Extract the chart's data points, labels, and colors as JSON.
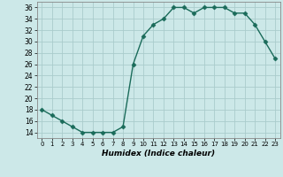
{
  "x": [
    0,
    1,
    2,
    3,
    4,
    5,
    6,
    7,
    8,
    9,
    10,
    11,
    12,
    13,
    14,
    15,
    16,
    17,
    18,
    19,
    20,
    21,
    22,
    23
  ],
  "y": [
    18,
    17,
    16,
    15,
    14,
    14,
    14,
    14,
    15,
    26,
    31,
    33,
    34,
    36,
    36,
    35,
    36,
    36,
    36,
    35,
    35,
    33,
    30,
    27
  ],
  "line_color": "#1a6b5a",
  "marker_color": "#1a6b5a",
  "bg_color": "#cce8e8",
  "grid_color": "#aacccc",
  "xlabel": "Humidex (Indice chaleur)",
  "xlim": [
    -0.5,
    23.5
  ],
  "ylim": [
    13,
    37
  ],
  "yticks": [
    14,
    16,
    18,
    20,
    22,
    24,
    26,
    28,
    30,
    32,
    34,
    36
  ],
  "xticks": [
    0,
    1,
    2,
    3,
    4,
    5,
    6,
    7,
    8,
    9,
    10,
    11,
    12,
    13,
    14,
    15,
    16,
    17,
    18,
    19,
    20,
    21,
    22,
    23
  ],
  "xtick_labels": [
    "0",
    "1",
    "2",
    "3",
    "4",
    "5",
    "6",
    "7",
    "8",
    "9",
    "10",
    "11",
    "12",
    "13",
    "14",
    "15",
    "16",
    "17",
    "18",
    "19",
    "20",
    "21",
    "22",
    "23"
  ],
  "line_width": 1.0,
  "marker_size": 2.5
}
